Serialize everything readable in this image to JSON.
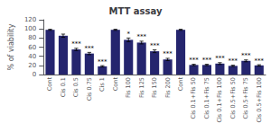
{
  "chart_data": {
    "type": "bar",
    "title": "MTT assay",
    "ylabel": "% of viability",
    "categories": [
      "Cont",
      "Cis 0.1",
      "Cis 0.5",
      "Cis 0.75",
      "Cis 1",
      "Cont",
      "Fis 100",
      "Fis 125",
      "Fis 150",
      "Fis 200",
      "Cont",
      "Cis 0.1+Fis 50",
      "Cis 0.1+Fis 75",
      "Cis 0.1+Fis 100",
      "Cis 0.5+Fis 50",
      "Cis 0.5+Fis 75",
      "Cis 0.5+Fis 100"
    ],
    "values": [
      98,
      85,
      55,
      46,
      18,
      98,
      76,
      70,
      51,
      33,
      98,
      21,
      21,
      24,
      19,
      30,
      20
    ],
    "errors": [
      1.2,
      3.5,
      2.5,
      2.5,
      1.5,
      1.2,
      4.0,
      3.0,
      3.0,
      2.5,
      1.2,
      1.5,
      1.5,
      2.0,
      1.5,
      2.0,
      1.5
    ],
    "annotations": [
      null,
      null,
      "***",
      "***",
      "***",
      null,
      "*",
      "***",
      "***",
      "***",
      null,
      "***",
      "***",
      "***",
      "***",
      "***",
      "***"
    ],
    "color": "#25256e",
    "ylim": [
      0,
      120
    ],
    "yticks": [
      0,
      20,
      40,
      60,
      80,
      100,
      120
    ],
    "grid": false
  }
}
